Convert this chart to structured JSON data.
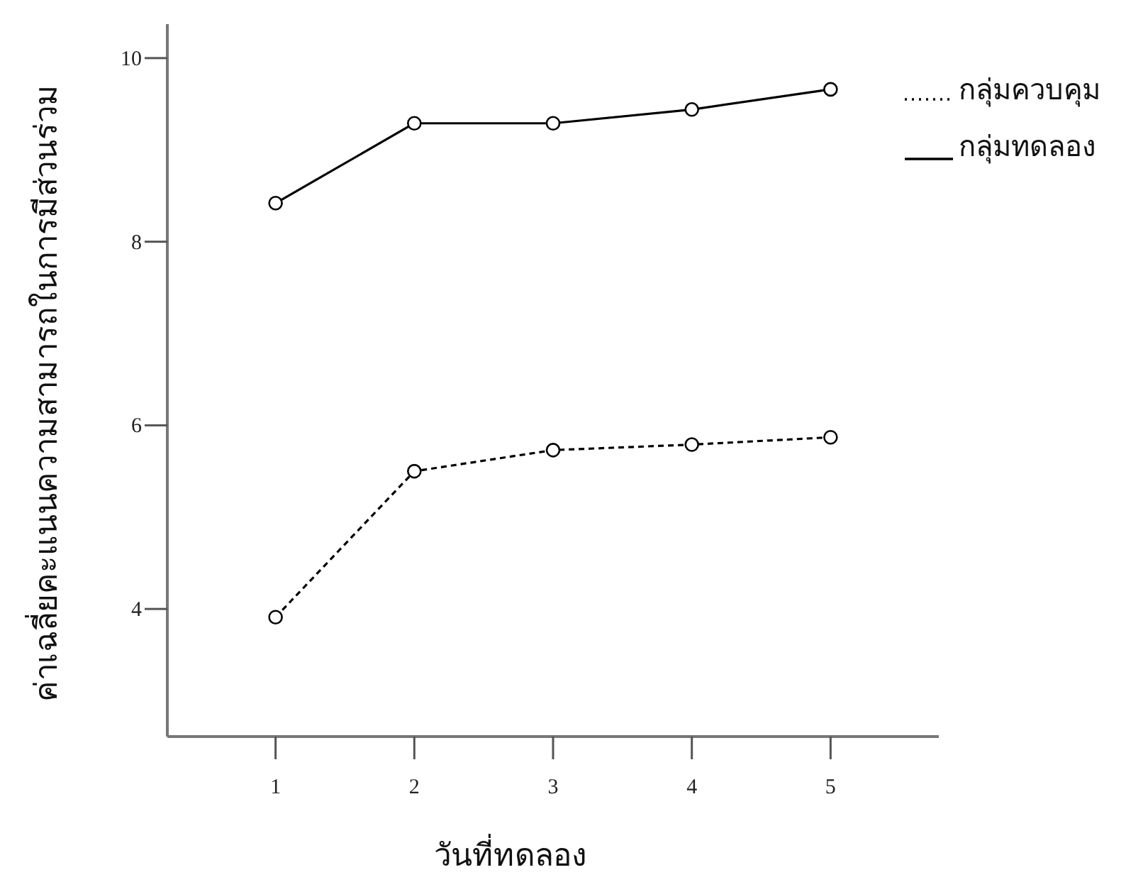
{
  "chart_data": {
    "type": "line",
    "xlabel": "วันที่ทดลอง",
    "ylabel": "ค่าเฉลี่ยคะแนนความสามารถในการมีส่วนร่วม",
    "x": [
      1,
      2,
      3,
      4,
      5
    ],
    "xlim": [
      0.22,
      5.78
    ],
    "xticks": [
      1,
      2,
      3,
      4,
      5
    ],
    "ylim": [
      2.61,
      10.37
    ],
    "yticks": [
      4,
      6,
      8,
      10
    ],
    "grid": false,
    "legend": "top right",
    "marker": "circle",
    "series": [
      {
        "name": "กลุ่มควบคุม",
        "color": "#000000",
        "line_style": "dashed",
        "values": [
          3.91,
          5.5,
          5.73,
          5.79,
          5.87
        ]
      },
      {
        "name": "กลุ่มทดลอง",
        "color": "#000000",
        "line_style": "solid",
        "values": [
          8.42,
          9.29,
          9.29,
          9.44,
          9.66
        ]
      }
    ]
  }
}
